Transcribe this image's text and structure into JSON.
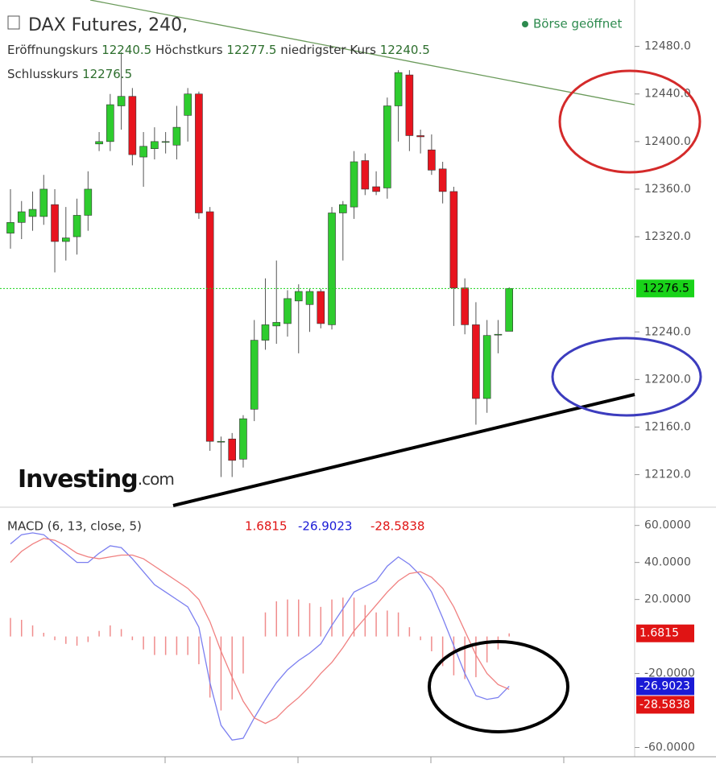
{
  "chart_data": [
    {
      "type": "candlestick",
      "title": "DAX Futures, 240,",
      "status": "Börse geöffnet",
      "ohlc_labels": {
        "open": "Eröffnungskurs",
        "high": "Höchstkurs",
        "low": "niedrigster Kurs",
        "close": "Schlusskurs"
      },
      "last": {
        "open": 12240.5,
        "high": 12277.5,
        "low": 12240.5,
        "close": 12276.5
      },
      "logo": {
        "brand": "Investing",
        "suffix": ".com"
      },
      "categories": [
        null,
        null,
        null,
        null,
        null,
        null,
        null,
        null,
        null,
        null,
        null,
        null,
        null,
        null,
        null,
        null,
        null,
        null,
        null,
        null,
        null,
        null,
        null,
        null,
        null,
        null,
        null,
        null,
        null,
        null,
        null,
        null,
        null,
        null,
        null,
        null,
        null,
        null,
        null,
        null,
        null,
        null,
        null,
        null,
        null,
        null
      ],
      "open": [
        12323,
        12332,
        12337,
        12337,
        12347,
        12316,
        12320,
        12338,
        12398,
        12400,
        12430,
        12438,
        12387,
        12394,
        12400,
        12397,
        12422,
        12440,
        12341,
        12148,
        12150,
        12133,
        12175,
        12233,
        12245,
        12247,
        12266,
        12263,
        12274,
        12246,
        12340,
        12345,
        12384,
        12362,
        12361,
        12430,
        12456,
        12405,
        12393,
        12377,
        12358,
        12277,
        12246,
        12184,
        12238,
        12240.5
      ],
      "high": [
        12360,
        12350,
        12358,
        12372,
        12360,
        12345,
        12352,
        12375,
        12408,
        12440,
        12475,
        12445,
        12408,
        12412,
        12408,
        12430,
        12445,
        12442,
        12345,
        12152,
        12155,
        12170,
        12250,
        12285,
        12300,
        12275,
        12280,
        12276,
        12276,
        12345,
        12350,
        12392,
        12390,
        12375,
        12437,
        12460,
        12460,
        12410,
        12406,
        12383,
        12362,
        12285,
        12265,
        12250,
        12250,
        12277.5
      ],
      "low": [
        12310,
        12318,
        12325,
        12330,
        12290,
        12300,
        12305,
        12325,
        12392,
        12392,
        12410,
        12380,
        12362,
        12385,
        12390,
        12385,
        12400,
        12335,
        12140,
        12118,
        12118,
        12126,
        12165,
        12225,
        12230,
        12236,
        12222,
        12240,
        12243,
        12242,
        12300,
        12335,
        12355,
        12355,
        12352,
        12400,
        12392,
        12390,
        12372,
        12348,
        12245,
        12238,
        12162,
        12172,
        12222,
        12240.5
      ],
      "close": [
        12332,
        12341,
        12343,
        12360,
        12316,
        12319,
        12338,
        12360,
        12400,
        12431,
        12438,
        12389,
        12396,
        12400,
        12400,
        12412,
        12440,
        12340,
        12148,
        12148,
        12132,
        12167,
        12233,
        12246,
        12248,
        12268,
        12274,
        12274,
        12247,
        12340,
        12347,
        12383,
        12360,
        12358,
        12430,
        12458,
        12405,
        12404,
        12376,
        12358,
        12277,
        12246,
        12184,
        12237,
        12238,
        12276.5
      ],
      "up_color": "#2ecc2e",
      "down_color": "#e8141e",
      "last_color": "#19d319",
      "ylim": [
        12094,
        12519
      ],
      "yticks": [
        {
          "value": 12120,
          "label": "12120.0"
        },
        {
          "value": 12160,
          "label": "12160.0"
        },
        {
          "value": 12200,
          "label": "12200.0"
        },
        {
          "value": 12240,
          "label": "12240.0"
        },
        {
          "value": 12320,
          "label": "12320.0"
        },
        {
          "value": 12360,
          "label": "12360.0"
        },
        {
          "value": 12400,
          "label": "12400.0"
        },
        {
          "value": 12440,
          "label": "12440.0"
        },
        {
          "value": 12480,
          "label": "12480.0"
        }
      ]
    },
    {
      "type": "macd",
      "title": "MACD (6, 13, close, 5)",
      "histogram": {
        "color": "#f08c8c",
        "values": [
          10,
          9,
          6,
          2,
          -2,
          -4,
          -5,
          -3,
          3,
          6,
          4,
          -2,
          -7,
          -10,
          -10,
          -10,
          -10,
          -15,
          -33,
          -40,
          -34,
          -20,
          0,
          13,
          19,
          20,
          20,
          18,
          16,
          20,
          21,
          21,
          17,
          13,
          14,
          13,
          5,
          -2,
          -8,
          -16,
          -21,
          -23,
          -22,
          -14,
          -7,
          1.6815
        ]
      },
      "series": [
        {
          "color": "#7b7ff0",
          "label_color": "#1a1ad6",
          "values": [
            50,
            55,
            56,
            55,
            50,
            45,
            40,
            40,
            45,
            49,
            48,
            42,
            35,
            28,
            24,
            20,
            16,
            5,
            -25,
            -48,
            -56,
            -55,
            -44,
            -34,
            -25,
            -18,
            -13,
            -9,
            -4,
            6,
            15,
            24,
            27,
            30,
            38,
            43,
            39,
            33,
            24,
            10,
            -5,
            -20,
            -32,
            -34,
            -33,
            -26.9023
          ]
        },
        {
          "color": "#f08080",
          "label_color": "#e01414",
          "values": [
            40,
            46,
            50,
            53,
            52,
            49,
            45,
            43,
            42,
            43,
            44,
            44,
            42,
            38,
            34,
            30,
            26,
            20,
            8,
            -8,
            -22,
            -35,
            -44,
            -47,
            -44,
            -38,
            -33,
            -27,
            -20,
            -14,
            -6,
            3,
            10,
            17,
            24,
            30,
            34,
            35,
            32,
            26,
            16,
            3,
            -10,
            -20,
            -26,
            -28.5838
          ]
        }
      ],
      "ylim": [
        -65,
        69
      ],
      "yticks": [
        {
          "value": -60,
          "label": "-60.0000"
        },
        {
          "value": -20,
          "label": "-20.0000"
        },
        {
          "value": 20,
          "label": "20.0000"
        },
        {
          "value": 40,
          "label": "40.0000"
        },
        {
          "value": 60,
          "label": "60.0000"
        }
      ]
    }
  ]
}
